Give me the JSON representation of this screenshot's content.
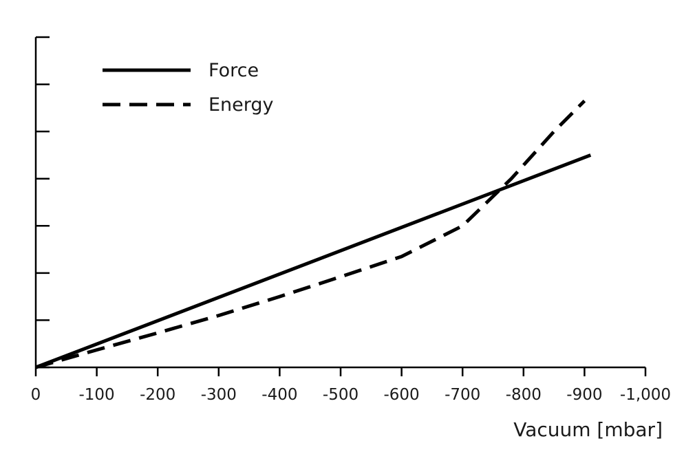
{
  "chart_data": {
    "type": "line",
    "xlabel": "Vacuum [mbar]",
    "ylabel": "",
    "title": "",
    "xlim": [
      0,
      -1000
    ],
    "x_ticks": [
      0,
      -100,
      -200,
      -300,
      -400,
      -500,
      -600,
      -700,
      -800,
      -900,
      -1000
    ],
    "x_tick_labels": [
      "0",
      "-100",
      "-200",
      "-300",
      "-400",
      "-500",
      "-600",
      "-700",
      "-800",
      "-900",
      "-1,000"
    ],
    "ylim": [
      0,
      7
    ],
    "y_ticks": [
      0,
      1,
      2,
      3,
      4,
      5,
      6,
      7
    ],
    "y_tick_labels": [],
    "grid": false,
    "legend_position": "top-left",
    "series": [
      {
        "name": "Force",
        "style": "solid",
        "color": "#000000",
        "x": [
          0,
          -910
        ],
        "y": [
          0,
          4.5
        ]
      },
      {
        "name": "Energy",
        "style": "dashed",
        "color": "#000000",
        "x": [
          0,
          -100,
          -200,
          -300,
          -400,
          -500,
          -600,
          -700,
          -780,
          -850,
          -900
        ],
        "y": [
          0,
          0.37,
          0.73,
          1.1,
          1.5,
          1.92,
          2.35,
          3.0,
          4.0,
          5.0,
          5.65
        ]
      }
    ]
  }
}
